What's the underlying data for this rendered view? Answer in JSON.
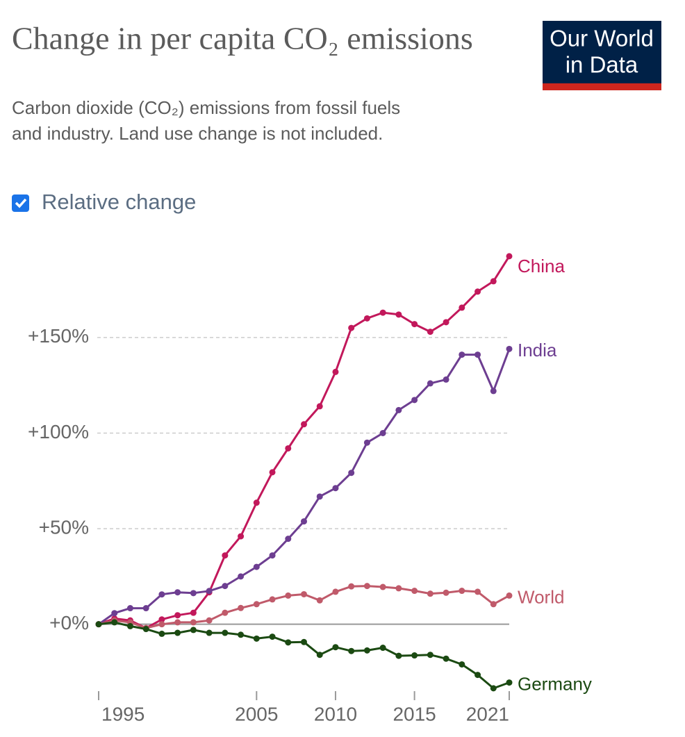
{
  "chart_data": {
    "type": "line",
    "title": "Change in per capita CO₂ emissions",
    "subtitle": [
      "Carbon dioxide (CO₂) emissions from fossil fuels",
      "and industry. Land use change is not included."
    ],
    "logo": [
      "Our World",
      "in Data"
    ],
    "toggle": {
      "label": "Relative change",
      "checked": true
    },
    "x": [
      1995,
      1996,
      1997,
      1998,
      1999,
      2000,
      2001,
      2002,
      2003,
      2004,
      2005,
      2006,
      2007,
      2008,
      2009,
      2010,
      2011,
      2012,
      2013,
      2014,
      2015,
      2016,
      2017,
      2018,
      2019,
      2020,
      2021
    ],
    "xlim": [
      1995,
      2021
    ],
    "xticks": [
      1995,
      2005,
      2010,
      2015,
      2021
    ],
    "ylim": [
      -35,
      195
    ],
    "yticks": [
      {
        "value": 0,
        "label": "+0%"
      },
      {
        "value": 50,
        "label": "+50%"
      },
      {
        "value": 100,
        "label": "+100%"
      },
      {
        "value": 150,
        "label": "+150%"
      }
    ],
    "grid": true,
    "series": [
      {
        "name": "China",
        "color": "#c2185b",
        "values": [
          0,
          3,
          2,
          -2,
          2.5,
          4.7,
          6,
          16.7,
          36,
          46,
          63.6,
          79.5,
          92,
          104.6,
          114,
          132,
          155,
          160,
          163,
          162,
          157,
          153,
          158,
          165.6,
          174,
          179.4,
          192.5
        ]
      },
      {
        "name": "India",
        "color": "#6d3e91",
        "values": [
          0,
          5.8,
          8.4,
          8.4,
          15.6,
          16.7,
          16.3,
          17.4,
          20,
          25,
          30,
          36,
          44.7,
          53.8,
          66.8,
          71.2,
          79.2,
          95,
          100,
          112,
          117.3,
          126,
          128,
          141,
          141,
          122,
          144
        ]
      },
      {
        "name": "World",
        "color": "#c05a6a",
        "values": [
          0,
          2,
          1,
          -2,
          0,
          1,
          1,
          2,
          6,
          8.5,
          10.5,
          13,
          15,
          15.7,
          12.5,
          17,
          19.8,
          20,
          19.5,
          18.8,
          17.5,
          16,
          16.5,
          17.5,
          17,
          10.5,
          15
        ]
      },
      {
        "name": "Germany",
        "color": "#1b4a12",
        "values": [
          0,
          1,
          -1,
          -2.5,
          -5,
          -4.5,
          -3,
          -4.5,
          -4.5,
          -5.5,
          -7.5,
          -6.5,
          -9.5,
          -9.3,
          -16,
          -12,
          -14,
          -13.7,
          -12.3,
          -16.5,
          -16.3,
          -16,
          -18,
          -21,
          -26.5,
          -33.5,
          -30.5
        ]
      }
    ]
  }
}
